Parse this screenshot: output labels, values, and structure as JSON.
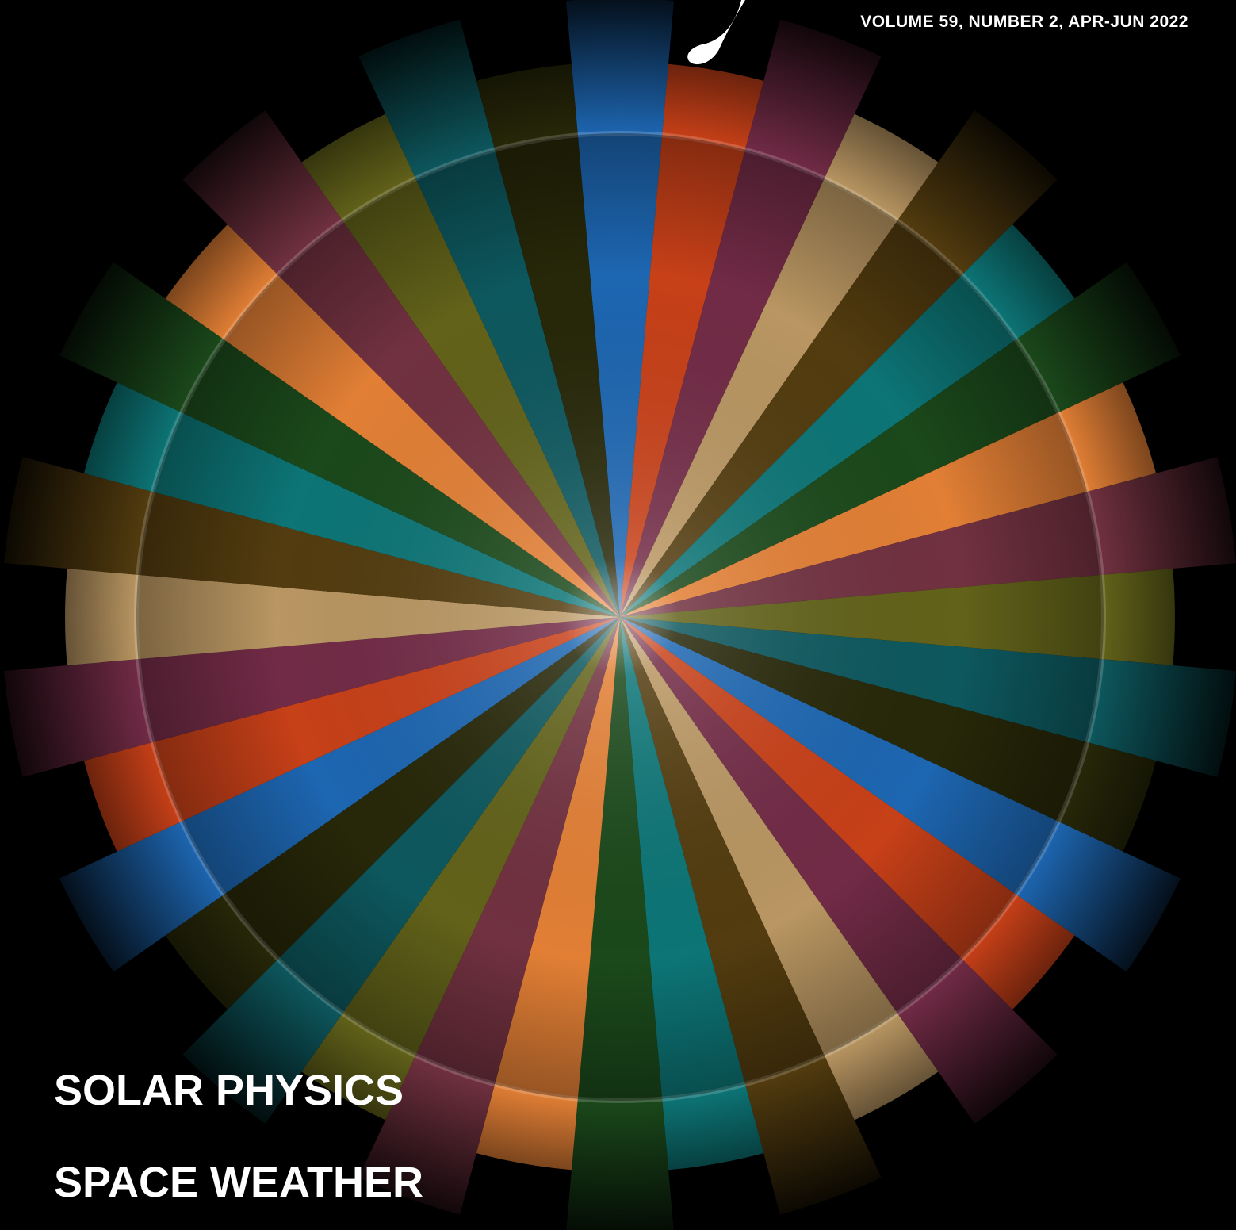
{
  "masthead": {
    "volume": "VOLUME 59,",
    "number": "NUMBER 2,",
    "date": "APR-JUN 2022"
  },
  "headlines": [
    "SOLAR PHYSICS",
    "SPACE WEATHER"
  ],
  "wheel": {
    "colors": [
      "#1f6fc0",
      "#d8451a",
      "#7c2f4c",
      "#c9a36a",
      "#5a4110",
      "#0e7f80",
      "#1d4f1d",
      "#f58a3a",
      "#7b3545",
      "#6a6a1c",
      "#0e5f66",
      "#2a2a0a"
    ]
  }
}
